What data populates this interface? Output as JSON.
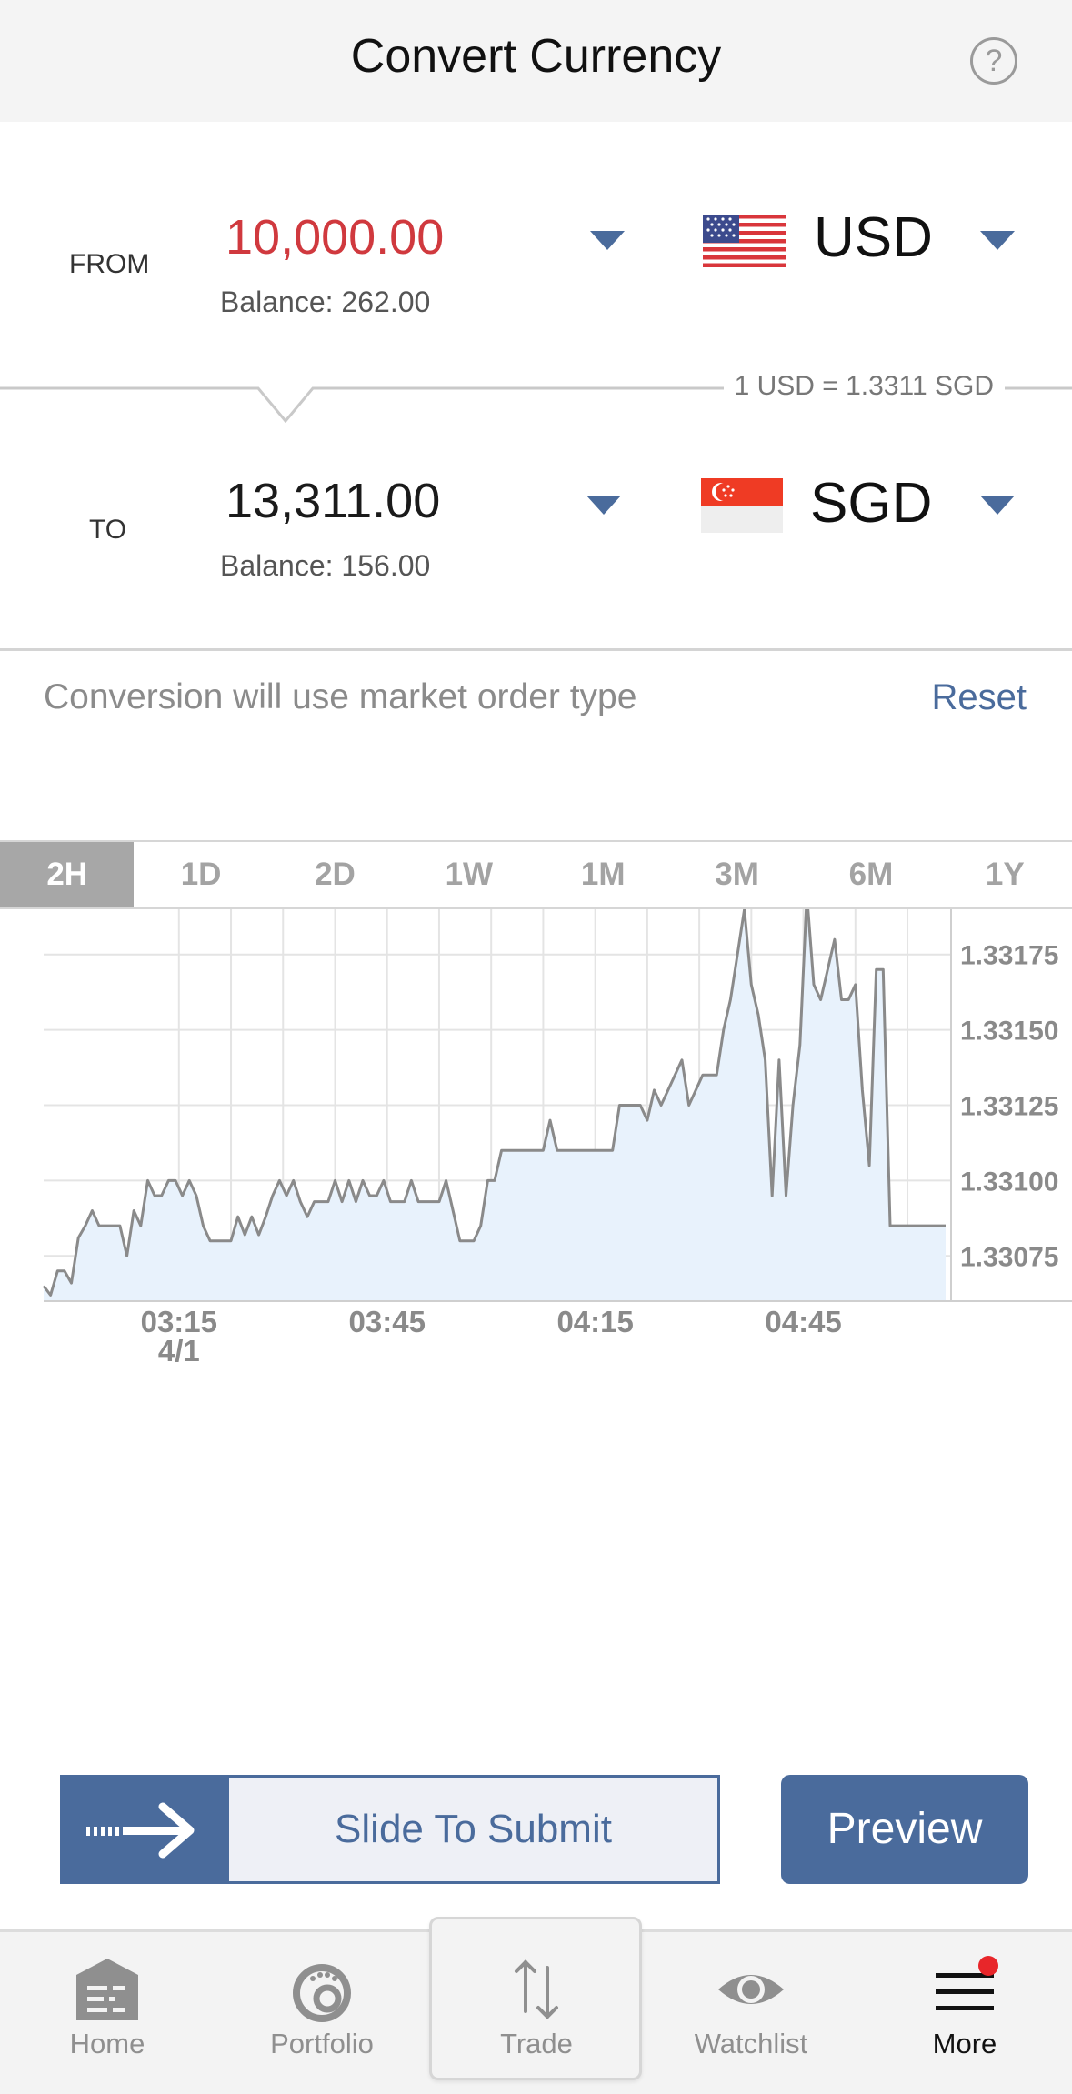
{
  "header": {
    "title": "Convert Currency",
    "help_symbol": "?"
  },
  "from": {
    "label": "FROM",
    "amount": "10,000.00",
    "amount_color": "#d0393e",
    "balance": "Balance: 262.00",
    "currency": "USD",
    "flag": "us-flag-icon"
  },
  "rate": {
    "text": "1 USD = 1.3311 SGD"
  },
  "to": {
    "label": "TO",
    "amount": "13,311.00",
    "balance": "Balance: 156.00",
    "currency": "SGD",
    "flag": "singapore-flag-icon"
  },
  "market_note": "Conversion will use market order type",
  "reset_label": "Reset",
  "range_tabs": [
    "2H",
    "1D",
    "2D",
    "1W",
    "1M",
    "3M",
    "6M",
    "1Y"
  ],
  "active_tab": "2H",
  "chart_data": {
    "type": "area",
    "ylim": [
      1.3306,
      1.3319
    ],
    "yticks": [
      "1.33175",
      "1.33150",
      "1.33125",
      "1.33100",
      "1.33075"
    ],
    "ytick_values": [
      1.33175,
      1.3315,
      1.33125,
      1.331,
      1.33075
    ],
    "xticks": [
      "03:15",
      "03:45",
      "04:15",
      "04:45"
    ],
    "xtick_values": [
      195,
      225,
      255,
      285
    ],
    "xtick_sublabel": "4/1",
    "xlim": [
      175.5,
      305.5
    ],
    "grid": true,
    "line_color": "#8a8a8a",
    "fill_color": "#e8f2fc",
    "x": [
      175.5,
      176.5,
      177.5,
      178.5,
      179.5,
      180.5,
      181.5,
      182.5,
      183.5,
      184.5,
      185.5,
      186.5,
      187.5,
      188.5,
      189.5,
      190.5,
      191.5,
      192.5,
      193.5,
      194.5,
      195.5,
      196.5,
      197.5,
      198.5,
      199.5,
      200.5,
      201.5,
      202.5,
      203.5,
      204.5,
      205.5,
      206.5,
      207.5,
      208.5,
      209.5,
      210.5,
      211.5,
      212.5,
      213.5,
      214.5,
      215.5,
      216.5,
      217.5,
      218.5,
      219.5,
      220.5,
      221.5,
      222.5,
      223.5,
      224.5,
      225.5,
      226.5,
      227.5,
      228.5,
      229.5,
      230.5,
      231.5,
      232.5,
      233.5,
      234.5,
      235.5,
      236.5,
      237.5,
      238.5,
      239.5,
      240.5,
      241.5,
      242.5,
      243.5,
      244.5,
      245.5,
      246.5,
      247.5,
      248.5,
      249.5,
      250.5,
      251.5,
      252.5,
      253.5,
      254.5,
      255.5,
      256.5,
      257.5,
      258.5,
      259.5,
      260.5,
      261.5,
      262.5,
      263.5,
      264.5,
      265.5,
      266.5,
      267.5,
      268.5,
      269.5,
      270.5,
      271.5,
      272.5,
      273.5,
      274.5,
      275.5,
      276.5,
      277.5,
      278.5,
      279.5,
      280.5,
      281.5,
      282.5,
      283.5,
      284.5,
      285.5,
      286.5,
      287.5,
      288.5,
      289.5,
      290.5,
      291.5,
      292.5,
      293.5,
      294.5,
      295.5,
      296.5,
      297.5,
      298.5,
      299.5,
      300.5,
      301.5,
      302.5,
      303.5,
      304.5,
      305.5
    ],
    "values": [
      1.33065,
      1.33062,
      1.3307,
      1.3307,
      1.33066,
      1.33081,
      1.33085,
      1.3309,
      1.33085,
      1.33085,
      1.33085,
      1.33085,
      1.33075,
      1.3309,
      1.33085,
      1.331,
      1.33095,
      1.33095,
      1.331,
      1.331,
      1.33095,
      1.331,
      1.33095,
      1.33085,
      1.3308,
      1.3308,
      1.3308,
      1.3308,
      1.33088,
      1.33082,
      1.33088,
      1.33082,
      1.33088,
      1.33095,
      1.331,
      1.33095,
      1.331,
      1.33093,
      1.33088,
      1.33093,
      1.33093,
      1.33093,
      1.331,
      1.33093,
      1.331,
      1.33093,
      1.331,
      1.33095,
      1.33095,
      1.331,
      1.33093,
      1.33093,
      1.33093,
      1.331,
      1.33093,
      1.33093,
      1.33093,
      1.33093,
      1.331,
      1.3309,
      1.3308,
      1.3308,
      1.3308,
      1.33085,
      1.331,
      1.331,
      1.3311,
      1.3311,
      1.3311,
      1.3311,
      1.3311,
      1.3311,
      1.3311,
      1.3312,
      1.3311,
      1.3311,
      1.3311,
      1.3311,
      1.3311,
      1.3311,
      1.3311,
      1.3311,
      1.3311,
      1.33125,
      1.33125,
      1.33125,
      1.33125,
      1.3312,
      1.3313,
      1.33125,
      1.3313,
      1.33135,
      1.3314,
      1.33125,
      1.3313,
      1.33135,
      1.33135,
      1.33135,
      1.3315,
      1.3316,
      1.33175,
      1.3319,
      1.33165,
      1.33155,
      1.3314,
      1.33095,
      1.3314,
      1.33095,
      1.33125,
      1.33145,
      1.33195,
      1.33165,
      1.3316,
      1.3317,
      1.3318,
      1.3316,
      1.3316,
      1.33165,
      1.3313,
      1.33105,
      1.3317,
      1.3317,
      1.33085,
      1.33085,
      1.33085,
      1.33085,
      1.33085,
      1.33085,
      1.33085,
      1.33085,
      1.33085
    ]
  },
  "actions": {
    "slide_label": "Slide To Submit",
    "preview_label": "Preview"
  },
  "nav": [
    {
      "label": "Home",
      "icon": "home-icon"
    },
    {
      "label": "Portfolio",
      "icon": "portfolio-icon"
    },
    {
      "label": "Trade",
      "icon": "trade-icon"
    },
    {
      "label": "Watchlist",
      "icon": "watchlist-icon"
    },
    {
      "label": "More",
      "icon": "menu-icon"
    }
  ],
  "colors": {
    "accent": "#4a6b9c",
    "notification_dot": "#e8262a"
  }
}
